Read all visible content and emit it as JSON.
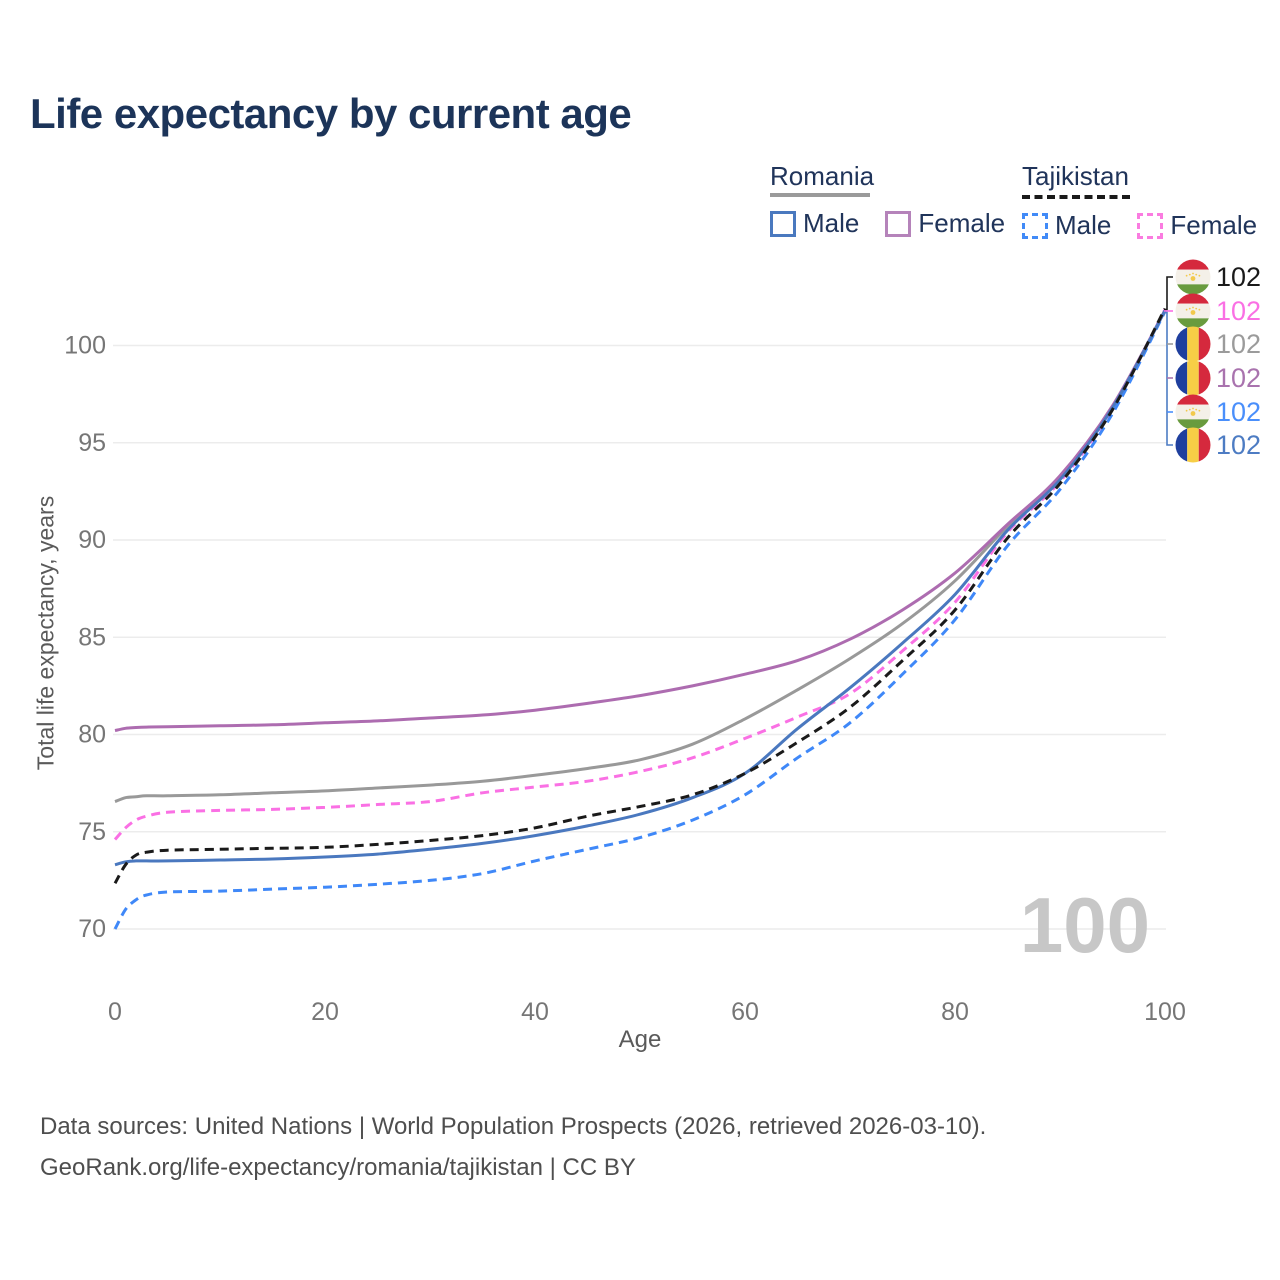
{
  "title": "Life expectancy by current age",
  "legend": {
    "groups": [
      {
        "label": "Romania",
        "line_style": "solid",
        "line_color": "#9a9a9a",
        "items": [
          {
            "label": "Male",
            "color": "#4a79bf",
            "dashed": false
          },
          {
            "label": "Female",
            "color": "#b583ba",
            "dashed": false
          }
        ]
      },
      {
        "label": "Tajikistan",
        "line_style": "dashed",
        "line_color": "#1a1a1a",
        "items": [
          {
            "label": "Male",
            "color": "#418af7",
            "dashed": true
          },
          {
            "label": "Female",
            "color": "#fa7ce0",
            "dashed": true
          }
        ]
      }
    ]
  },
  "chart_data": {
    "type": "line",
    "title": "Life expectancy by current age",
    "xlabel": "Age",
    "ylabel": "Total life expectancy, years",
    "x_ticks": [
      0,
      20,
      40,
      60,
      80,
      100
    ],
    "y_ticks": [
      70,
      75,
      80,
      85,
      90,
      95,
      100
    ],
    "xlim": [
      0,
      100
    ],
    "ylim": [
      69.5,
      102.5
    ],
    "grid": "horizontal",
    "legend_position": "top-right",
    "hover_age": "100",
    "x": [
      0,
      1,
      2,
      3,
      5,
      10,
      15,
      20,
      25,
      30,
      35,
      40,
      45,
      50,
      55,
      60,
      65,
      70,
      75,
      80,
      85,
      90,
      95,
      100
    ],
    "series": [
      {
        "name": "Romania - Both sexes",
        "country": "Romania",
        "sex": "All",
        "line": "solid",
        "color": "#999999",
        "values": [
          76.55,
          76.75,
          76.8,
          76.85,
          76.85,
          76.9,
          77.0,
          77.1,
          77.25,
          77.4,
          77.6,
          77.9,
          78.25,
          78.7,
          79.5,
          80.8,
          82.3,
          83.9,
          85.7,
          87.9,
          90.7,
          93.2,
          96.85,
          101.8
        ]
      },
      {
        "name": "Romania - Female",
        "country": "Romania",
        "sex": "Female",
        "line": "solid",
        "color": "#ad6cb0",
        "values": [
          80.2,
          80.32,
          80.36,
          80.38,
          80.4,
          80.45,
          80.5,
          80.6,
          80.7,
          80.85,
          81.0,
          81.25,
          81.6,
          82.0,
          82.5,
          83.1,
          83.8,
          84.9,
          86.4,
          88.3,
          90.8,
          93.3,
          96.9,
          101.8
        ]
      },
      {
        "name": "Tajikistan - Female",
        "country": "Tajikistan",
        "sex": "Female",
        "line": "dashed",
        "color": "#fa70e4",
        "values": [
          74.6,
          75.2,
          75.6,
          75.8,
          76.0,
          76.1,
          76.15,
          76.25,
          76.4,
          76.55,
          77.0,
          77.3,
          77.6,
          78.1,
          78.8,
          79.8,
          80.9,
          82.1,
          84.3,
          86.8,
          90.4,
          93.0,
          96.75,
          101.85
        ]
      },
      {
        "name": "Tajikistan - Male",
        "country": "Tajikistan",
        "sex": "Male",
        "line": "dashed",
        "color": "#3f88f8",
        "values": [
          70.0,
          71.0,
          71.5,
          71.75,
          71.9,
          71.95,
          72.05,
          72.15,
          72.3,
          72.5,
          72.85,
          73.5,
          74.1,
          74.7,
          75.6,
          76.9,
          78.8,
          80.6,
          83.1,
          85.9,
          89.7,
          92.6,
          96.5,
          101.75
        ]
      },
      {
        "name": "Romania - Male",
        "country": "Romania",
        "sex": "Male",
        "line": "solid",
        "color": "#4a78bf",
        "values": [
          73.3,
          73.45,
          73.5,
          73.5,
          73.5,
          73.55,
          73.6,
          73.7,
          73.85,
          74.1,
          74.4,
          74.8,
          75.3,
          75.9,
          76.75,
          78.0,
          80.3,
          82.4,
          84.7,
          87.2,
          90.5,
          93.1,
          96.8,
          101.8
        ]
      },
      {
        "name": "Tajikistan - Both sexes",
        "country": "Tajikistan",
        "sex": "All",
        "line": "dashed",
        "color": "#1a1a1a",
        "values": [
          72.35,
          73.3,
          73.8,
          73.95,
          74.05,
          74.1,
          74.15,
          74.2,
          74.35,
          74.55,
          74.8,
          75.2,
          75.8,
          76.3,
          76.9,
          78.0,
          79.6,
          81.4,
          83.8,
          86.4,
          90.1,
          92.9,
          96.7,
          101.9
        ]
      }
    ],
    "end_labels": [
      {
        "country": "Tajikistan",
        "sex": "All",
        "flag": "tj",
        "value": "102",
        "color": "#1a1a1a"
      },
      {
        "country": "Tajikistan",
        "sex": "Female",
        "flag": "tj",
        "value": "102",
        "color": "#fa70e4"
      },
      {
        "country": "Romania",
        "sex": "All",
        "flag": "ro",
        "value": "102",
        "color": "#9b9b9b"
      },
      {
        "country": "Romania",
        "sex": "Female",
        "flag": "ro",
        "value": "102",
        "color": "#a973ae"
      },
      {
        "country": "Tajikistan",
        "sex": "Male",
        "flag": "tj",
        "value": "102",
        "color": "#4a8ffb"
      },
      {
        "country": "Romania",
        "sex": "Male",
        "flag": "ro",
        "value": "102",
        "color": "#4d7cc3"
      }
    ]
  },
  "axes": {
    "x": {
      "label": "Age"
    },
    "y": {
      "label": "Total life expectancy, years"
    }
  },
  "footer": {
    "line1": "Data sources: United Nations | World Population Prospects (2026, retrieved 2026-03-10).",
    "line2": "GeoRank.org/life-expectancy/romania/tajikistan | CC BY"
  }
}
